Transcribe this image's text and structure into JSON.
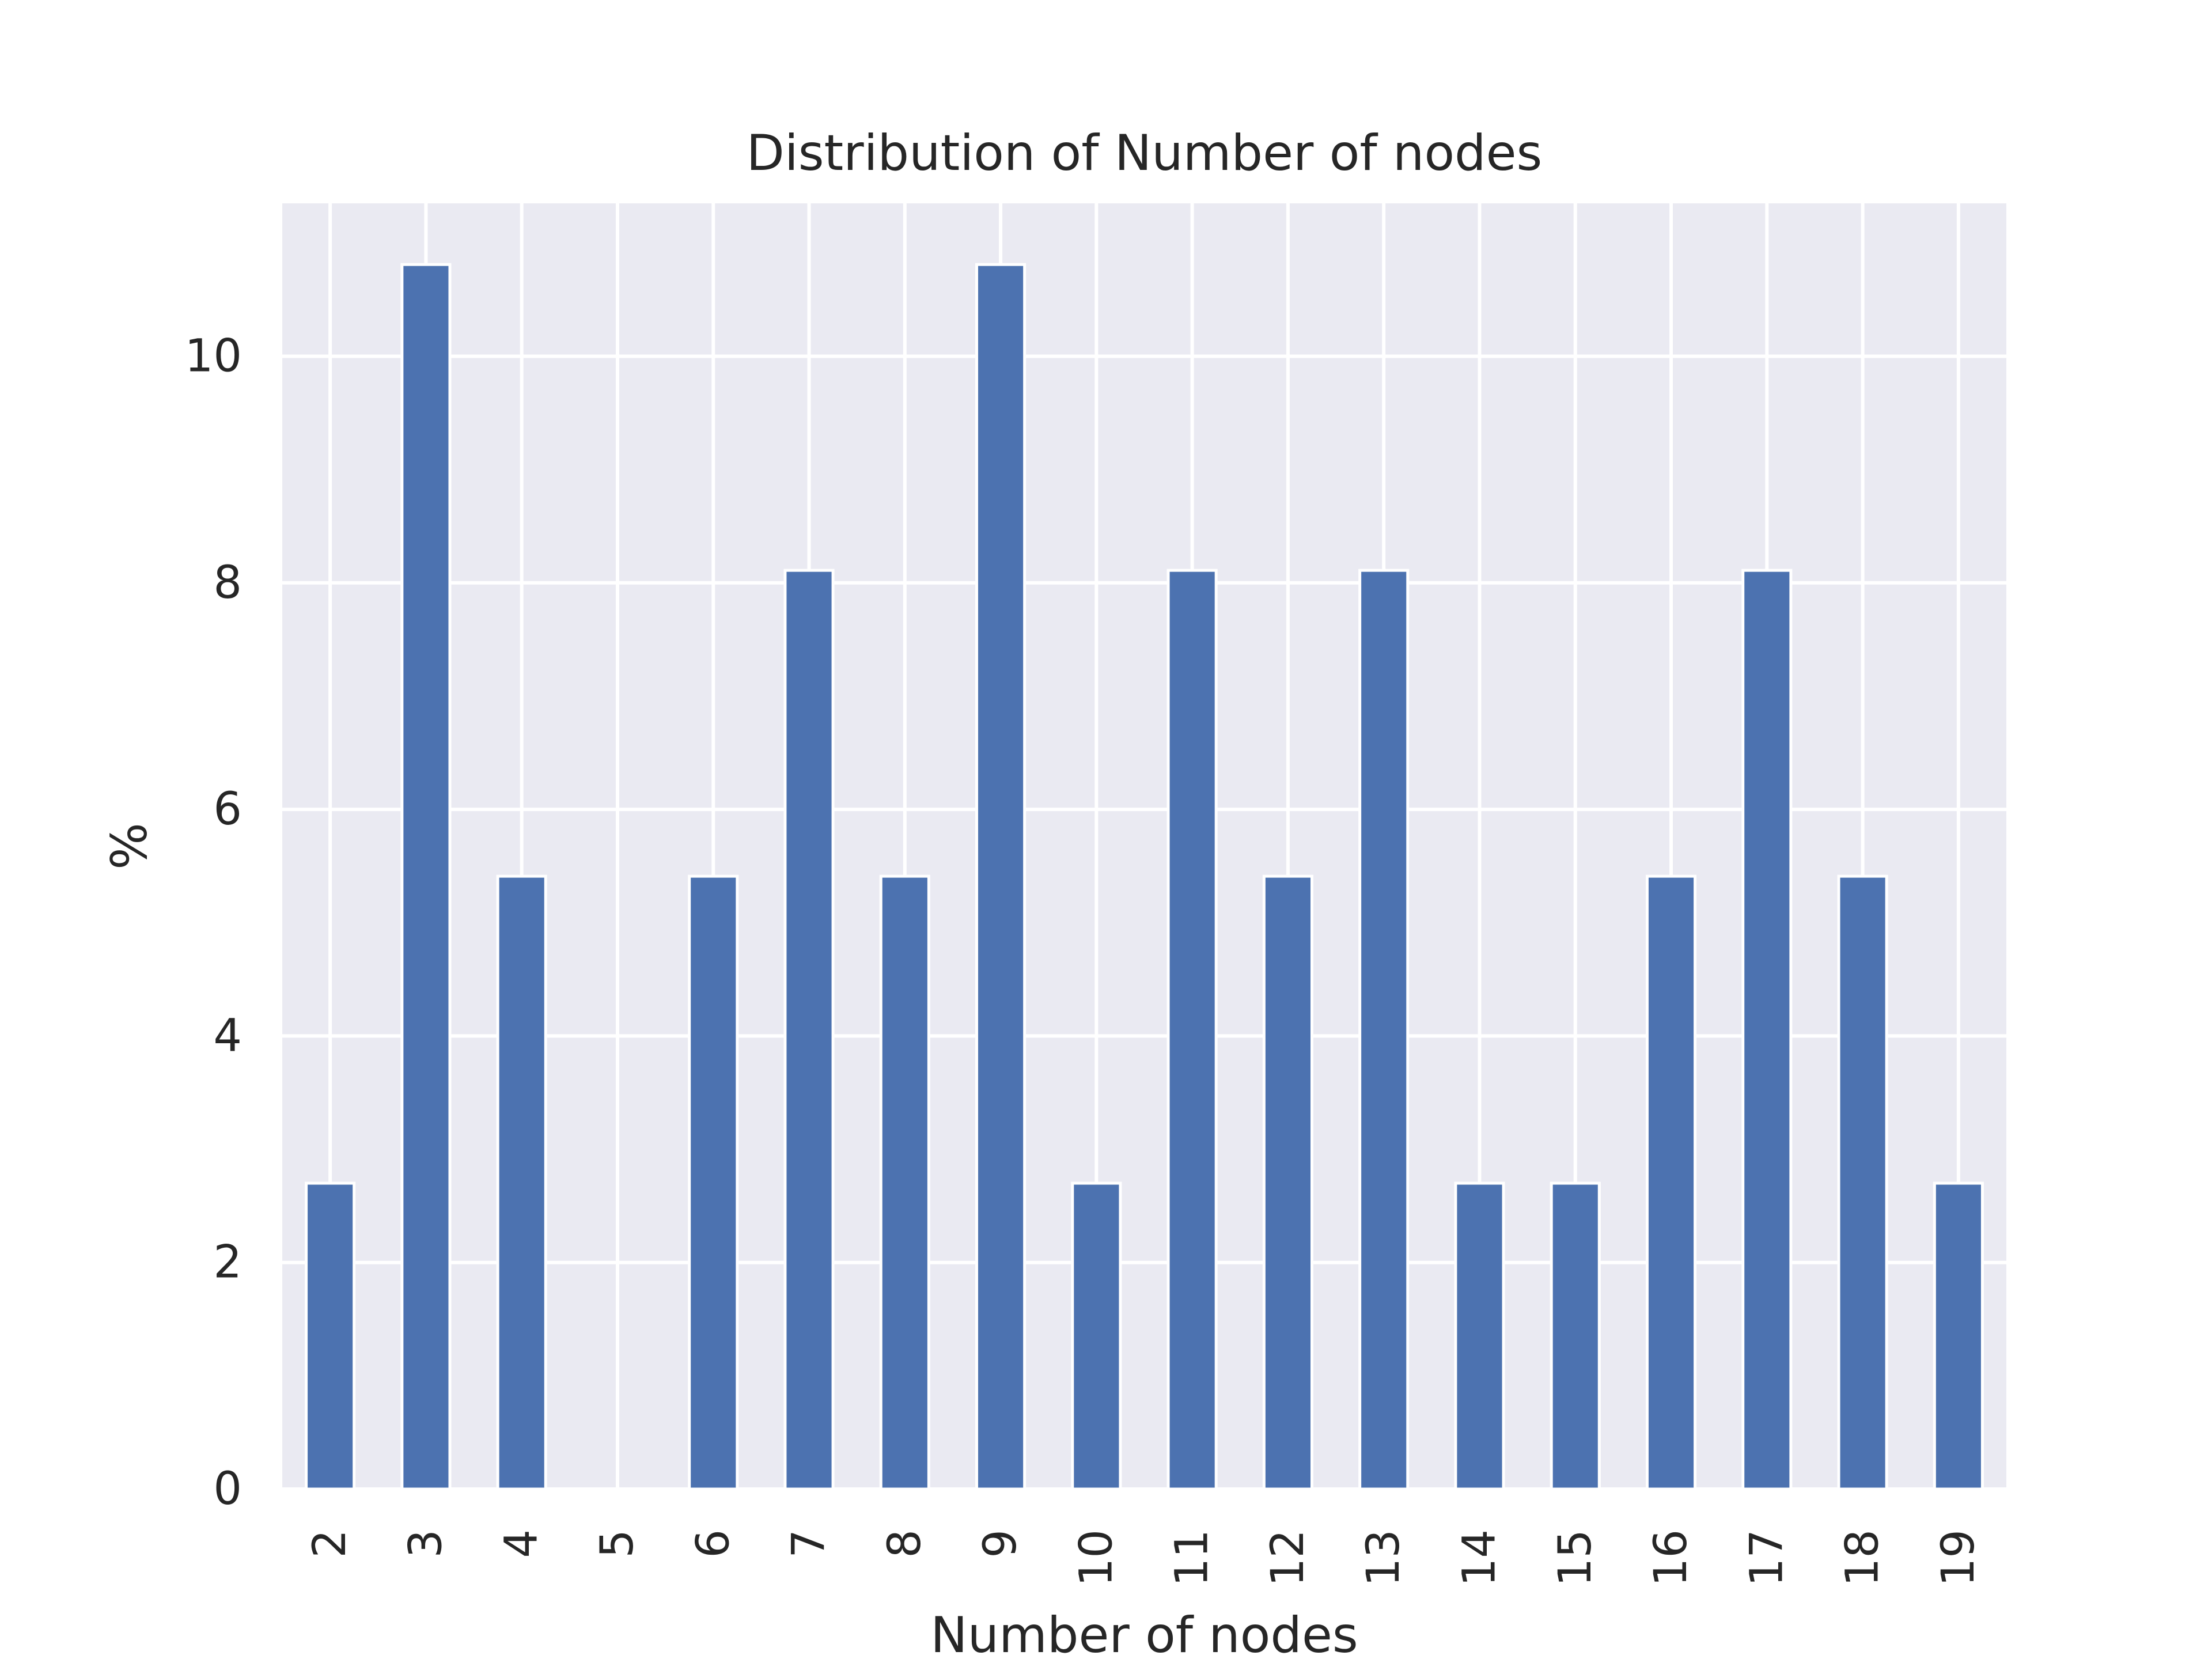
{
  "chart_data": {
    "type": "bar",
    "title": "Distribution of Number of nodes",
    "xlabel": "Number of nodes",
    "ylabel": "%",
    "categories": [
      "2",
      "3",
      "4",
      "5",
      "6",
      "7",
      "8",
      "9",
      "10",
      "11",
      "12",
      "13",
      "14",
      "15",
      "16",
      "17",
      "18",
      "19"
    ],
    "values": [
      2.7,
      10.81,
      5.41,
      0,
      5.41,
      8.11,
      5.41,
      10.81,
      2.7,
      8.11,
      5.41,
      8.11,
      2.7,
      2.7,
      5.41,
      8.11,
      5.41,
      2.7
    ],
    "yticks": [
      "0",
      "2",
      "4",
      "6",
      "8",
      "10"
    ],
    "ylim": [
      0,
      11.35
    ],
    "grid": true,
    "colors": {
      "bar": "#4c72b0",
      "plot_background": "#eaeaf2",
      "grid": "#ffffff",
      "text": "#262626"
    }
  }
}
